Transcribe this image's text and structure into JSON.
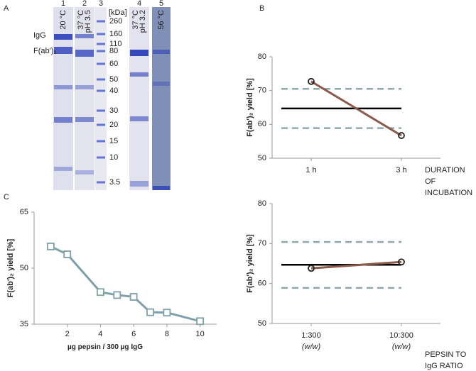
{
  "panel_labels": [
    "A",
    "B",
    "C"
  ],
  "gel": {
    "lanes": [
      {
        "number": "1",
        "labels": [
          "20 °C"
        ]
      },
      {
        "number": "2",
        "labels": [
          "37 °C",
          "pH 3.5"
        ]
      },
      {
        "number": "3"
      },
      {
        "number": "4",
        "labels": [
          "37 °C",
          "pH 3.2"
        ]
      },
      {
        "number": "5",
        "labels": [
          "56 °C"
        ]
      }
    ],
    "band_labels": [
      "IgG",
      "F(ab')₂"
    ],
    "marker_unit": "[kDa]",
    "marker_sizes": [
      "260",
      "160",
      "110",
      "80",
      "60",
      "50",
      "40",
      "30",
      "20",
      "15",
      "10",
      "3.5"
    ]
  },
  "chart_data": [
    {
      "type": "line",
      "y_label": "F(ab')₂ yield [%]",
      "x_label": "DURATION OF INCUBATION",
      "categories": [
        "1 h",
        "3 h"
      ],
      "series": [
        {
          "color": "#8b5a4b",
          "values": [
            72.7,
            56.7
          ]
        }
      ],
      "marker": "circle",
      "reference_lines": [
        {
          "value": 64.7,
          "color": "#000000",
          "style": "solid"
        },
        {
          "value": 70.5,
          "color": "#8fa8ad",
          "style": "dashed"
        },
        {
          "value": 58.9,
          "color": "#8fa8ad",
          "style": "dashed"
        }
      ],
      "ylim": [
        50,
        80
      ],
      "yticks": [
        50,
        60,
        70,
        80
      ]
    },
    {
      "type": "line",
      "y_label": "F(ab')₂ yield [%]",
      "x_label": "µg pepsin / 300 µg IgG",
      "x": [
        1,
        2,
        4,
        5,
        6,
        7,
        8,
        10
      ],
      "series": [
        {
          "color": "#7fa0a8",
          "values": [
            55.8,
            53.7,
            43.6,
            42.8,
            42.3,
            38.2,
            38.1,
            35.8
          ]
        }
      ],
      "marker": "square",
      "xlim": [
        0,
        11
      ],
      "xticks": [
        2,
        4,
        6,
        8,
        10
      ],
      "ylim": [
        35,
        65
      ],
      "yticks": [
        35,
        50,
        65
      ]
    },
    {
      "type": "line",
      "y_label": "F(ab')₂ yield [%]",
      "x_label": "PEPSIN TO IgG RATIO",
      "categories": [
        "1:300",
        "10:300"
      ],
      "category_notes": [
        "(w/w)",
        "(w/w)"
      ],
      "series": [
        {
          "color": "#8b5a4b",
          "values": [
            63.8,
            65.4
          ]
        }
      ],
      "marker": "circle",
      "reference_lines": [
        {
          "value": 64.7,
          "color": "#000000",
          "style": "solid"
        },
        {
          "value": 70.4,
          "color": "#8fa8ad",
          "style": "dashed"
        },
        {
          "value": 58.9,
          "color": "#8fa8ad",
          "style": "dashed"
        }
      ],
      "ylim": [
        50,
        80
      ],
      "yticks": [
        50,
        60,
        70,
        80
      ]
    }
  ]
}
